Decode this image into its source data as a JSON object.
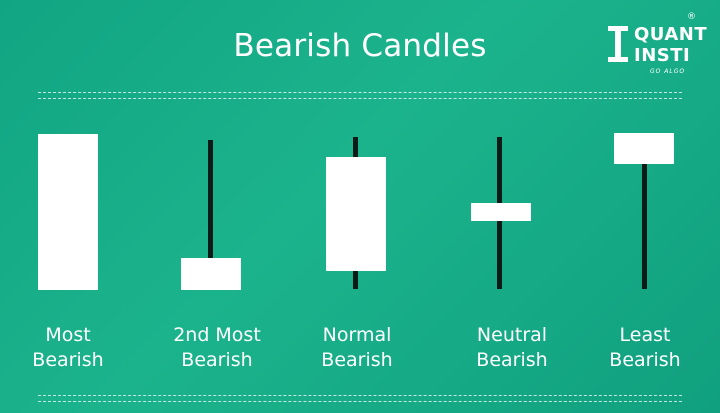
{
  "title": "Bearish Candles",
  "logo": {
    "line1": "QUANT",
    "line2": "INSTI",
    "tagline": "GO ALGO",
    "registered": "®"
  },
  "candles": [
    {
      "line1": "Most",
      "line2": "Bearish"
    },
    {
      "line1": "2nd Most",
      "line2": "Bearish"
    },
    {
      "line1": "Normal",
      "line2": "Bearish"
    },
    {
      "line1": "Neutral",
      "line2": "Bearish"
    },
    {
      "line1": "Least",
      "line2": "Bearish"
    }
  ],
  "colors": {
    "background": "#14a886",
    "candle_body": "#ffffff",
    "wick": "#0b1c18"
  }
}
